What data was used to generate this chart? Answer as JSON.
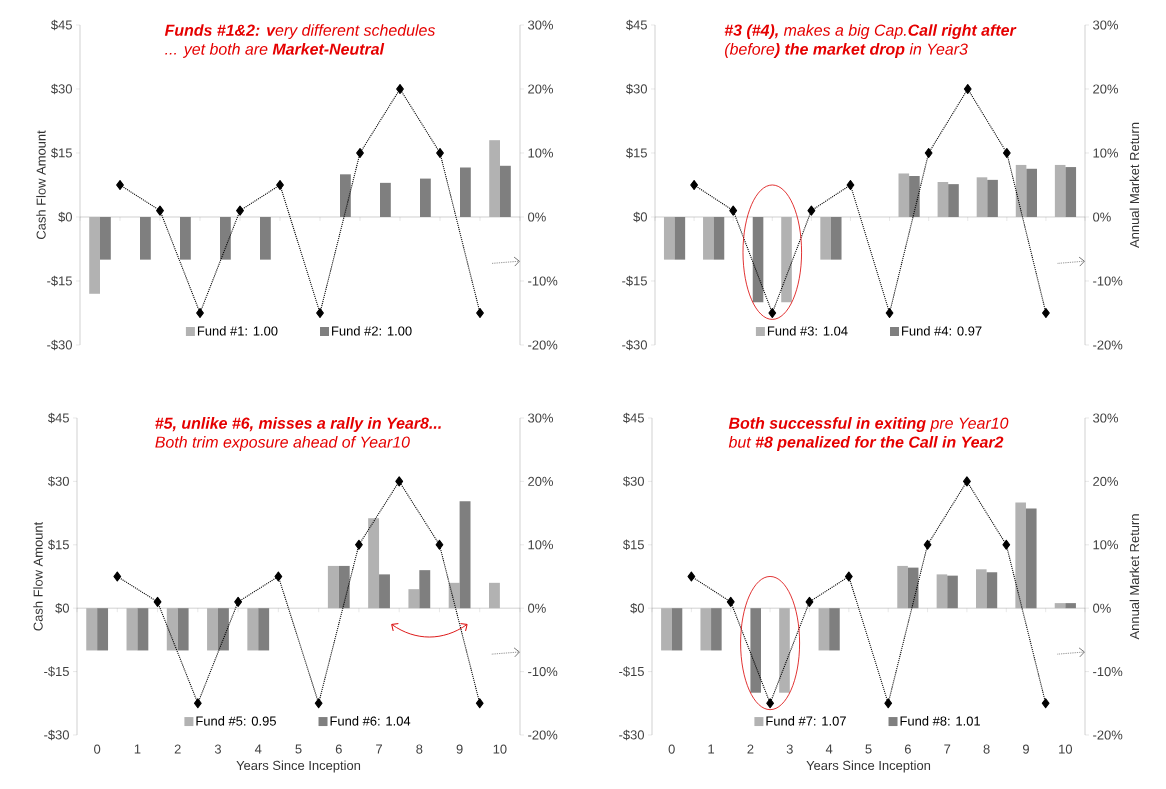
{
  "chart_data": [
    {
      "type": "bar",
      "title": "**Funds #1&2: v**ery different schedules",
      "subtitle": "...  yet both are **Market-Neutral**",
      "ylabel": "Cash Flow Amount",
      "x": [
        0,
        1,
        2,
        3,
        4,
        5,
        6,
        7,
        8,
        9,
        10
      ],
      "xlim": [
        -0.5,
        10.5
      ],
      "xticks": [
        0,
        1,
        2,
        3,
        4,
        5,
        6,
        7,
        8,
        9,
        10
      ],
      "ylim": [
        -30,
        45
      ],
      "yticks": [
        {
          "value": -30,
          "label": "-$30"
        },
        {
          "value": -15,
          "label": "-$15"
        },
        {
          "value": 0,
          "label": "$0"
        },
        {
          "value": 15,
          "label": "$15"
        },
        {
          "value": 30,
          "label": "$30"
        },
        {
          "value": 45,
          "label": "$45"
        }
      ],
      "y2lim": [
        -20,
        30
      ],
      "y2ticks": [
        {
          "value": -20,
          "label": "-20%"
        },
        {
          "value": -10,
          "label": "-10%"
        },
        {
          "value": 0,
          "label": "0%"
        },
        {
          "value": 10,
          "label": "10%"
        },
        {
          "value": 20,
          "label": "20%"
        },
        {
          "value": 30,
          "label": "30%"
        }
      ],
      "legend": "bottom",
      "tick_labels": "y",
      "series": [
        {
          "name": "Fund #1: 1.00",
          "color": "#b2b2b2",
          "values": [
            -18,
            null,
            null,
            null,
            null,
            null,
            null,
            null,
            null,
            null,
            18
          ]
        },
        {
          "name": "Fund #2: 1.00",
          "color": "#7f7f7f",
          "values": [
            -10,
            -10,
            -10,
            -10,
            -10,
            null,
            10,
            8,
            9,
            11.6,
            12
          ]
        },
        {
          "type": "line",
          "axis": "y2",
          "color": "#000000",
          "marker": "diamond",
          "line_style": "dotted",
          "x": [
            0.5,
            1.5,
            2.5,
            3.5,
            4.5,
            5.5,
            6.5,
            7.5,
            8.5,
            9.5
          ],
          "values": [
            5,
            1,
            -15,
            1,
            5,
            -15,
            10,
            20,
            10,
            -15
          ]
        }
      ]
    },
    {
      "type": "bar",
      "title": "**#3 (#4),** makes a big Cap.**Call right after**",
      "subtitle": "(before**) the market drop** in Year3",
      "y2label": "Annual Market Return",
      "x": [
        0,
        1,
        2,
        3,
        4,
        5,
        6,
        7,
        8,
        9,
        10
      ],
      "xlim": [
        -0.5,
        10.5
      ],
      "xticks": [
        0,
        1,
        2,
        3,
        4,
        5,
        6,
        7,
        8,
        9,
        10
      ],
      "ylim": [
        -30,
        45
      ],
      "yticks": [
        {
          "value": -30,
          "label": "-$30"
        },
        {
          "value": -15,
          "label": "-$15"
        },
        {
          "value": 0,
          "label": "$0"
        },
        {
          "value": 15,
          "label": "$15"
        },
        {
          "value": 30,
          "label": "$30"
        },
        {
          "value": 45,
          "label": "$45"
        }
      ],
      "y2lim": [
        -20,
        30
      ],
      "y2ticks": [
        {
          "value": -20,
          "label": "-20%"
        },
        {
          "value": -10,
          "label": "-10%"
        },
        {
          "value": 0,
          "label": "0%"
        },
        {
          "value": 10,
          "label": "10%"
        },
        {
          "value": 20,
          "label": "20%"
        },
        {
          "value": 30,
          "label": "30%"
        }
      ],
      "legend": "bottom",
      "tick_labels": "y",
      "series": [
        {
          "name": "Fund #3: 1.04",
          "color": "#b2b2b2",
          "values": [
            -10,
            -10,
            null,
            -20,
            -10,
            null,
            10.2,
            8.2,
            9.3,
            12.2,
            12.2
          ]
        },
        {
          "name": "Fund #4: 0.97",
          "color": "#7f7f7f",
          "values": [
            -10,
            -10,
            -20,
            null,
            -10,
            null,
            9.6,
            7.7,
            8.7,
            11.3,
            11.7
          ]
        },
        {
          "type": "line",
          "axis": "y2",
          "color": "#000000",
          "marker": "diamond",
          "line_style": "dotted",
          "x": [
            0.5,
            1.5,
            2.5,
            3.5,
            4.5,
            5.5,
            6.5,
            7.5,
            8.5,
            9.5
          ],
          "values": [
            5,
            1,
            -15,
            1,
            5,
            -15,
            10,
            20,
            10,
            -15
          ]
        }
      ]
    },
    {
      "type": "bar",
      "title": "**#5, unlike #6, misses a rally in Year8...**",
      "subtitle": "Both trim exposure ahead of Year10",
      "xlabel": "Years Since Inception",
      "ylabel": "Cash Flow Amount",
      "x": [
        0,
        1,
        2,
        3,
        4,
        5,
        6,
        7,
        8,
        9,
        10
      ],
      "xlim": [
        -0.5,
        10.5
      ],
      "xticks": [
        0,
        1,
        2,
        3,
        4,
        5,
        6,
        7,
        8,
        9,
        10
      ],
      "ylim": [
        -30,
        45
      ],
      "yticks": [
        {
          "value": -30,
          "label": "-$30"
        },
        {
          "value": -15,
          "label": "-$15"
        },
        {
          "value": 0,
          "label": "$0"
        },
        {
          "value": 15,
          "label": "$15"
        },
        {
          "value": 30,
          "label": "$30"
        },
        {
          "value": 45,
          "label": "$45"
        }
      ],
      "y2lim": [
        -20,
        30
      ],
      "y2ticks": [
        {
          "value": -20,
          "label": "-20%"
        },
        {
          "value": -10,
          "label": "-10%"
        },
        {
          "value": 0,
          "label": "0%"
        },
        {
          "value": 10,
          "label": "10%"
        },
        {
          "value": 20,
          "label": "20%"
        },
        {
          "value": 30,
          "label": "30%"
        }
      ],
      "legend": "bottom",
      "series": [
        {
          "name": "Fund #5: 0.95",
          "color": "#b2b2b2",
          "values": [
            -10,
            -10,
            -10,
            -10,
            -10,
            null,
            10,
            21.3,
            4.5,
            6,
            6
          ]
        },
        {
          "name": "Fund #6: 1.04",
          "color": "#7f7f7f",
          "values": [
            -10,
            -10,
            -10,
            -10,
            -10,
            null,
            10,
            8,
            9,
            25.3,
            null
          ]
        },
        {
          "type": "line",
          "axis": "y2",
          "color": "#000000",
          "marker": "diamond",
          "line_style": "dotted",
          "x": [
            0.5,
            1.5,
            2.5,
            3.5,
            4.5,
            5.5,
            6.5,
            7.5,
            8.5,
            9.5
          ],
          "values": [
            5,
            1,
            -15,
            1,
            5,
            -15,
            10,
            20,
            10,
            -15
          ]
        }
      ]
    },
    {
      "type": "bar",
      "title": "**Both successful in exiting** pre Year10",
      "subtitle": "but **#8 penalized for the Call in Year2**",
      "xlabel": "Years Since Inception",
      "y2label": "Annual Market Return",
      "x": [
        0,
        1,
        2,
        3,
        4,
        5,
        6,
        7,
        8,
        9,
        10
      ],
      "xlim": [
        -0.5,
        10.5
      ],
      "xticks": [
        0,
        1,
        2,
        3,
        4,
        5,
        6,
        7,
        8,
        9,
        10
      ],
      "ylim": [
        -30,
        45
      ],
      "yticks": [
        {
          "value": -30,
          "label": "-$30"
        },
        {
          "value": -15,
          "label": "-$15"
        },
        {
          "value": 0,
          "label": "$0"
        },
        {
          "value": 15,
          "label": "$15"
        },
        {
          "value": 30,
          "label": "$30"
        },
        {
          "value": 45,
          "label": "$45"
        }
      ],
      "y2lim": [
        -20,
        30
      ],
      "y2ticks": [
        {
          "value": -20,
          "label": "-20%"
        },
        {
          "value": -10,
          "label": "-10%"
        },
        {
          "value": 0,
          "label": "0%"
        },
        {
          "value": 10,
          "label": "10%"
        },
        {
          "value": 20,
          "label": "20%"
        },
        {
          "value": 30,
          "label": "30%"
        }
      ],
      "legend": "bottom",
      "series": [
        {
          "name": "Fund #7: 1.07",
          "color": "#b2b2b2",
          "values": [
            -10,
            -10,
            null,
            -20,
            -10,
            null,
            10,
            8,
            9.2,
            25,
            1.2
          ]
        },
        {
          "name": "Fund #8: 1.01",
          "color": "#7f7f7f",
          "values": [
            -10,
            -10,
            -20,
            null,
            -10,
            null,
            9.6,
            7.7,
            8.5,
            23.6,
            1.2
          ]
        },
        {
          "type": "line",
          "axis": "y2",
          "color": "#000000",
          "marker": "diamond",
          "line_style": "dotted",
          "x": [
            0.5,
            1.5,
            2.5,
            3.5,
            4.5,
            5.5,
            6.5,
            7.5,
            8.5,
            9.5
          ],
          "values": [
            5,
            1,
            -15,
            1,
            5,
            -15,
            10,
            20,
            10,
            -15
          ]
        }
      ]
    }
  ]
}
